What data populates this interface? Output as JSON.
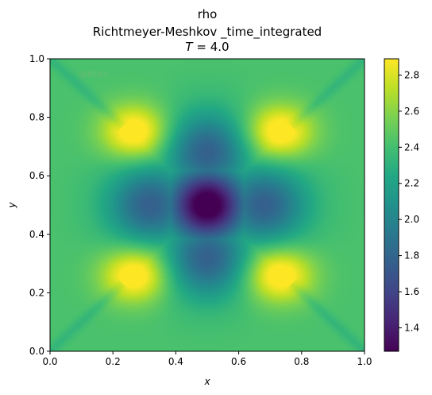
{
  "chart_data": {
    "type": "heatmap",
    "title_lines": [
      "rho",
      "Richtmeyer-Meshkov _time_integrated"
    ],
    "time_label": {
      "italic": "T",
      "rest": " = 4.0"
    },
    "xlabel": "x",
    "ylabel": "y",
    "xlim": [
      0.0,
      1.0
    ],
    "ylim": [
      0.0,
      1.0
    ],
    "x_ticks": [
      "0.0",
      "0.2",
      "0.4",
      "0.6",
      "0.8",
      "1.0"
    ],
    "y_ticks": [
      "0.0",
      "0.2",
      "0.4",
      "0.6",
      "0.8",
      "1.0"
    ],
    "colorbar": {
      "colormap": "viridis",
      "range": [
        1.27,
        2.89
      ],
      "ticks": [
        "1.4",
        "1.6",
        "1.8",
        "2.0",
        "2.2",
        "2.4",
        "2.6",
        "2.8"
      ],
      "tick_values": [
        1.4,
        1.6,
        1.8,
        2.0,
        2.2,
        2.4,
        2.6,
        2.8
      ]
    },
    "field": {
      "background": 2.42,
      "center": {
        "x": 0.5,
        "y": 0.5,
        "value": 1.27
      },
      "high_lobes": [
        {
          "x": 0.27,
          "y": 0.75,
          "value": 2.89
        },
        {
          "x": 0.73,
          "y": 0.75,
          "value": 2.89
        },
        {
          "x": 0.27,
          "y": 0.26,
          "value": 2.89
        },
        {
          "x": 0.73,
          "y": 0.26,
          "value": 2.89
        }
      ],
      "low_arms": [
        {
          "x": 0.5,
          "y": 0.68,
          "value": 1.85
        },
        {
          "x": 0.5,
          "y": 0.32,
          "value": 1.85
        },
        {
          "x": 0.32,
          "y": 0.5,
          "value": 1.85
        },
        {
          "x": 0.68,
          "y": 0.5,
          "value": 1.85
        }
      ]
    },
    "watermark": "@8b6c"
  }
}
